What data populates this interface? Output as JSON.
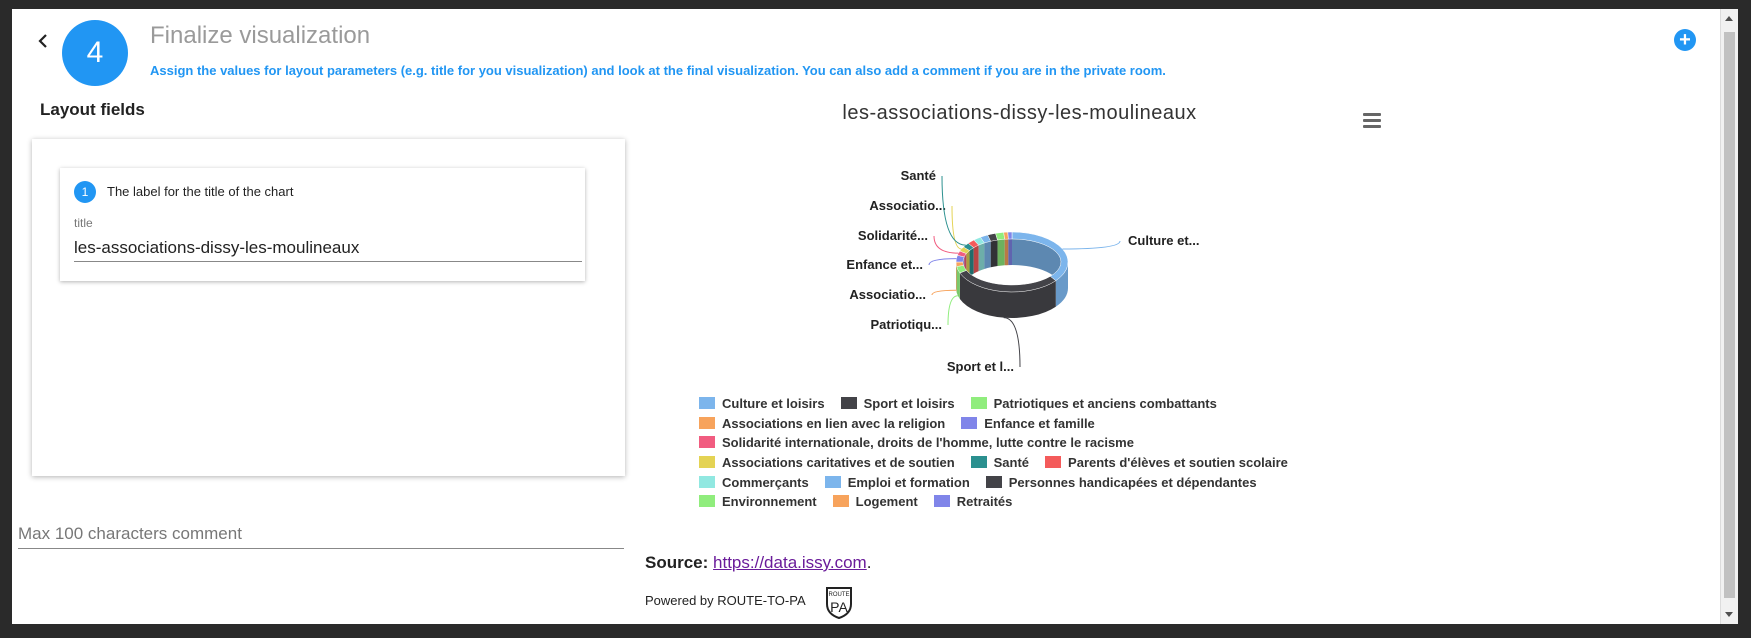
{
  "header": {
    "step_number": "4",
    "title": "Finalize visualization",
    "description": "Assign the values for layout parameters (e.g. title for you visualization) and look at the final visualization. You can also add a comment if you are in the private room."
  },
  "layout": {
    "heading": "Layout fields",
    "field": {
      "number": "1",
      "description": "The label for the title of the chart",
      "name": "title",
      "value": "les-associations-dissy-les-moulineaux"
    }
  },
  "comment": {
    "placeholder": "Max 100 characters comment"
  },
  "source": {
    "label": "Source:",
    "link": "https://data.issy.com",
    "suffix": "."
  },
  "powered_by": "Powered by ROUTE-TO-PA",
  "logo": {
    "top": "ROUTE",
    "main": "PA"
  },
  "icons": {
    "back": "chevron-left-icon",
    "add": "plus-circle-icon",
    "menu": "hamburger-menu-icon"
  },
  "colors": {
    "accent": "#2196f3",
    "link_visited": "#6a1b9a"
  },
  "chart_data": {
    "type": "pie",
    "variant": "3d-donut",
    "title": "les-associations-dissy-les-moulineaux",
    "series": [
      {
        "name": "Culture et loisirs",
        "value": 30,
        "color": "#7cb5ec",
        "label": "Culture et..."
      },
      {
        "name": "Sport et loisirs",
        "value": 28,
        "color": "#434348",
        "label": "Sport et l..."
      },
      {
        "name": "Patriotiques et anciens combattants",
        "value": 3,
        "color": "#90ed7d",
        "label": "Patriotiqu..."
      },
      {
        "name": "Associations en lien avec la religion",
        "value": 2,
        "color": "#f7a35c",
        "label": "Associatio..."
      },
      {
        "name": "Enfance et famille",
        "value": 3,
        "color": "#8085e9",
        "label": "Enfance et..."
      },
      {
        "name": "Solidarité internationale, droits de l'homme, lutte contre le racisme",
        "value": 2,
        "color": "#f15c80",
        "label": "Solidarité..."
      },
      {
        "name": "Associations caritatives et de soutien",
        "value": 2,
        "color": "#e4d354",
        "label": "Associatio..."
      },
      {
        "name": "Santé",
        "value": 2,
        "color": "#2b908f",
        "label": "Santé"
      },
      {
        "name": "Parents d'élèves et soutien scolaire",
        "value": 2,
        "color": "#f45b5b"
      },
      {
        "name": "Commerçants",
        "value": 2,
        "color": "#91e8e1"
      },
      {
        "name": "Emploi et formation",
        "value": 2,
        "color": "#7cb5ec"
      },
      {
        "name": "Personnes handicapées et dépendantes",
        "value": 2,
        "color": "#434348"
      },
      {
        "name": "Environnement",
        "value": 2,
        "color": "#90ed7d"
      },
      {
        "name": "Logement",
        "value": 1,
        "color": "#f7a35c"
      },
      {
        "name": "Retraités",
        "value": 1,
        "color": "#8085e9"
      }
    ],
    "legend_rows": [
      [
        0,
        1,
        2
      ],
      [
        3,
        4
      ],
      [
        5
      ],
      [
        6,
        7,
        8
      ],
      [
        9,
        10,
        11
      ],
      [
        12,
        13,
        14
      ]
    ],
    "legend_position": "bottom"
  }
}
